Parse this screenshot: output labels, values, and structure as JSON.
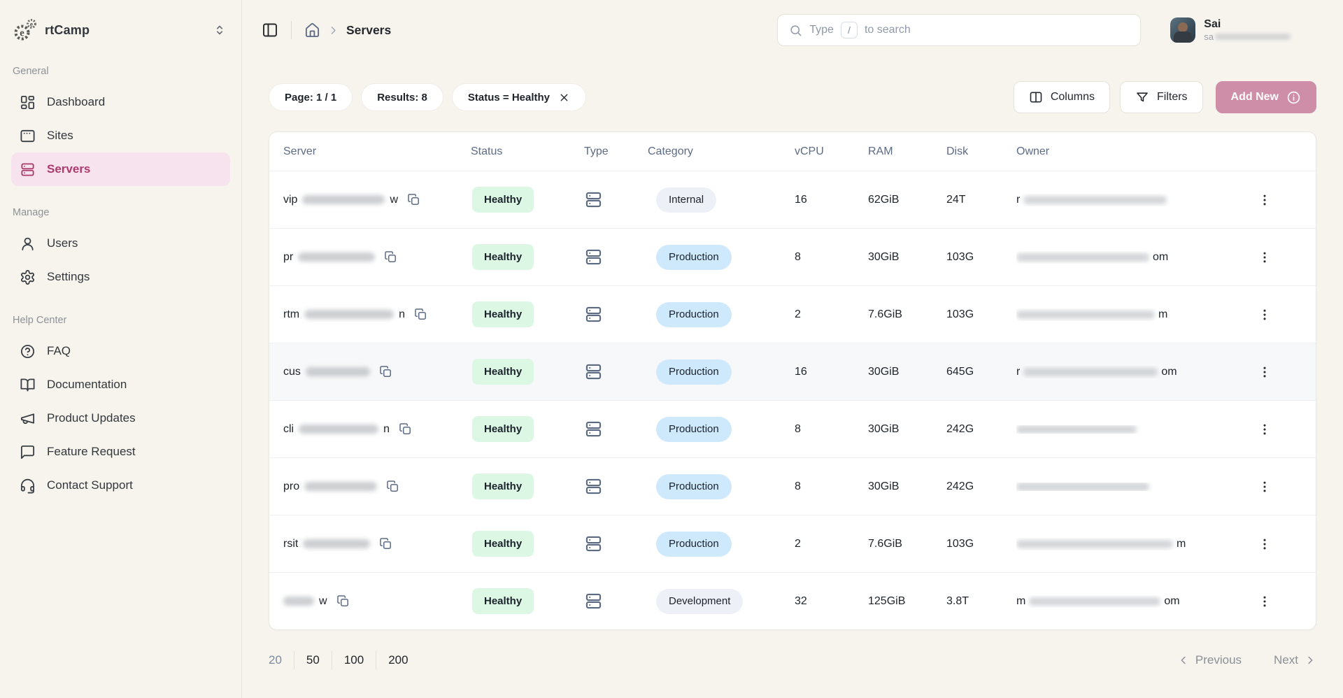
{
  "brand": {
    "name": "rtCamp"
  },
  "sidebar": {
    "sections": [
      {
        "title": "General",
        "items": [
          {
            "label": "Dashboard",
            "icon": "dashboard",
            "active": false
          },
          {
            "label": "Sites",
            "icon": "window",
            "active": false
          },
          {
            "label": "Servers",
            "icon": "server",
            "active": true
          }
        ]
      },
      {
        "title": "Manage",
        "items": [
          {
            "label": "Users",
            "icon": "user",
            "active": false
          },
          {
            "label": "Settings",
            "icon": "gear",
            "active": false
          }
        ]
      },
      {
        "title": "Help Center",
        "items": [
          {
            "label": "FAQ",
            "icon": "help-circle",
            "active": false
          },
          {
            "label": "Documentation",
            "icon": "book-open",
            "active": false
          },
          {
            "label": "Product Updates",
            "icon": "megaphone",
            "active": false
          },
          {
            "label": "Feature Request",
            "icon": "message-square",
            "active": false
          },
          {
            "label": "Contact Support",
            "icon": "headset",
            "active": false
          }
        ]
      }
    ]
  },
  "header": {
    "breadcrumb_current": "Servers",
    "search_placeholder_prefix": "Type",
    "search_key": "/",
    "search_placeholder_suffix": "to search",
    "user_name": "Sai",
    "user_email_prefix": "sa"
  },
  "toolbar": {
    "chips": [
      {
        "label": "Page: 1 / 1",
        "dismissible": false
      },
      {
        "label": "Results: 8",
        "dismissible": false
      },
      {
        "label": "Status = Healthy",
        "dismissible": true
      }
    ],
    "columns": "Columns",
    "filters": "Filters",
    "add_new": "Add New"
  },
  "table": {
    "headers": [
      "Server",
      "Status",
      "Type",
      "Category",
      "vCPU",
      "RAM",
      "Disk",
      "Owner"
    ],
    "rows": [
      {
        "name_prefix": "vip",
        "name_blur": 118,
        "name_suffix": "w",
        "status": "Healthy",
        "category": "Internal",
        "category_style": "neutral",
        "vcpu": "16",
        "ram": "62GiB",
        "disk": "24T",
        "owner_prefix": "r",
        "owner_blur": 205,
        "owner_suffix": "",
        "highlight": false
      },
      {
        "name_prefix": "pr",
        "name_blur": 110,
        "name_suffix": "",
        "status": "Healthy",
        "category": "Production",
        "category_style": "blue",
        "vcpu": "8",
        "ram": "30GiB",
        "disk": "103G",
        "owner_prefix": "",
        "owner_blur": 190,
        "owner_suffix": "om",
        "highlight": false
      },
      {
        "name_prefix": "rtm",
        "name_blur": 128,
        "name_suffix": "n",
        "status": "Healthy",
        "category": "Production",
        "category_style": "blue",
        "vcpu": "2",
        "ram": "7.6GiB",
        "disk": "103G",
        "owner_prefix": "",
        "owner_blur": 198,
        "owner_suffix": "m",
        "highlight": false
      },
      {
        "name_prefix": "cus",
        "name_blur": 92,
        "name_suffix": "",
        "status": "Healthy",
        "category": "Production",
        "category_style": "blue",
        "vcpu": "16",
        "ram": "30GiB",
        "disk": "645G",
        "owner_prefix": "r",
        "owner_blur": 192,
        "owner_suffix": "om",
        "highlight": true
      },
      {
        "name_prefix": "cli",
        "name_blur": 114,
        "name_suffix": "n",
        "status": "Healthy",
        "category": "Production",
        "category_style": "blue",
        "vcpu": "8",
        "ram": "30GiB",
        "disk": "242G",
        "owner_prefix": "",
        "owner_blur": 172,
        "owner_suffix": "",
        "highlight": false
      },
      {
        "name_prefix": "pro",
        "name_blur": 104,
        "name_suffix": "",
        "status": "Healthy",
        "category": "Production",
        "category_style": "blue",
        "vcpu": "8",
        "ram": "30GiB",
        "disk": "242G",
        "owner_prefix": "",
        "owner_blur": 190,
        "owner_suffix": "",
        "highlight": false
      },
      {
        "name_prefix": "rsit",
        "name_blur": 96,
        "name_suffix": "",
        "status": "Healthy",
        "category": "Production",
        "category_style": "blue",
        "vcpu": "2",
        "ram": "7.6GiB",
        "disk": "103G",
        "owner_prefix": "",
        "owner_blur": 224,
        "owner_suffix": "m",
        "highlight": false
      },
      {
        "name_prefix": "",
        "name_blur": 44,
        "name_suffix": "w",
        "status": "Healthy",
        "category": "Development",
        "category_style": "neutral",
        "vcpu": "32",
        "ram": "125GiB",
        "disk": "3.8T",
        "owner_prefix": "m",
        "owner_blur": 188,
        "owner_suffix": "om",
        "highlight": false
      }
    ]
  },
  "pagination": {
    "sizes": [
      "20",
      "50",
      "100",
      "200"
    ],
    "active_size": "20",
    "previous": "Previous",
    "next": "Next"
  },
  "colors": {
    "accent": "#ad3a6d",
    "accent_bg": "#f7e3ed",
    "add_new_bg": "#cf8ea8",
    "healthy_bg": "#dcf8e5",
    "production_bg": "#cfe9fc",
    "neutral_badge_bg": "#edf0f6",
    "page_bg": "#f7f4ee",
    "card_bg": "#ffffff"
  }
}
